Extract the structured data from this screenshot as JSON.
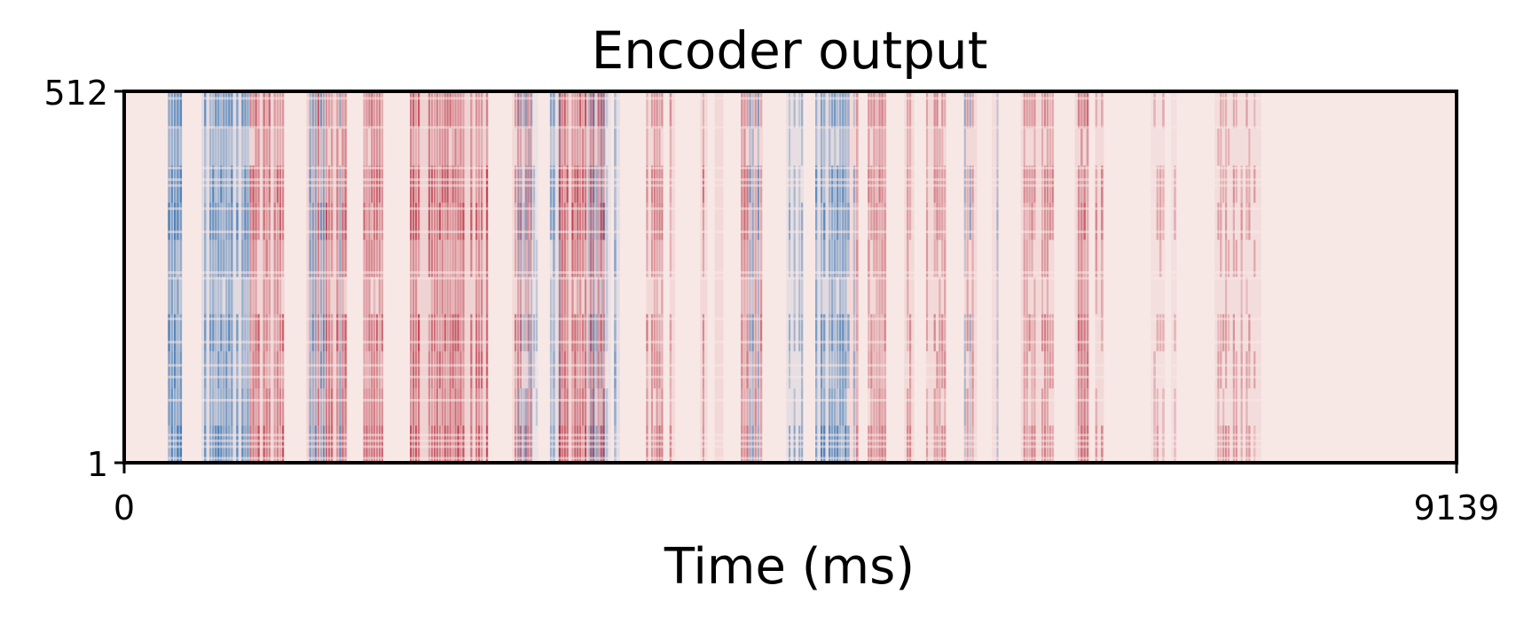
{
  "chart_data": {
    "type": "heatmap",
    "title": "Encoder output",
    "xlabel": "Time (ms)",
    "ylabel": "",
    "xlim": [
      0,
      9139
    ],
    "ylim": [
      1,
      512
    ],
    "x_ticks": [
      "0",
      "9139"
    ],
    "y_ticks": [
      "1",
      "512"
    ],
    "colormap": "diverging blue-white-red",
    "colors": {
      "negative": "#2166ac",
      "neutral": "#f7e8e6",
      "positive": "#b2182b"
    },
    "grid": false,
    "legend": "none",
    "bands": [
      {
        "x_start": 300,
        "x_end": 400,
        "sign": "negative",
        "intensity": 0.95
      },
      {
        "x_start": 530,
        "x_end": 860,
        "sign": "negative",
        "intensity": 0.85
      },
      {
        "x_start": 860,
        "x_end": 1100,
        "sign": "positive",
        "intensity": 0.75
      },
      {
        "x_start": 1250,
        "x_end": 1530,
        "sign": "mixed",
        "intensity": 0.8
      },
      {
        "x_start": 1640,
        "x_end": 1780,
        "sign": "positive",
        "intensity": 0.7
      },
      {
        "x_start": 1960,
        "x_end": 2500,
        "sign": "positive",
        "intensity": 0.85
      },
      {
        "x_start": 2660,
        "x_end": 2800,
        "sign": "positive",
        "intensity": 0.6
      },
      {
        "x_start": 2700,
        "x_end": 2840,
        "sign": "negative",
        "intensity": 0.4
      },
      {
        "x_start": 2920,
        "x_end": 3000,
        "sign": "negative",
        "intensity": 0.65
      },
      {
        "x_start": 2980,
        "x_end": 3300,
        "sign": "positive",
        "intensity": 0.85
      },
      {
        "x_start": 3180,
        "x_end": 3340,
        "sign": "negative",
        "intensity": 0.45
      },
      {
        "x_start": 3360,
        "x_end": 3400,
        "sign": "negative",
        "intensity": 0.75
      },
      {
        "x_start": 3580,
        "x_end": 3700,
        "sign": "positive",
        "intensity": 0.6
      },
      {
        "x_start": 3740,
        "x_end": 3780,
        "sign": "positive",
        "intensity": 0.55
      },
      {
        "x_start": 3950,
        "x_end": 4000,
        "sign": "positive",
        "intensity": 0.6
      },
      {
        "x_start": 4050,
        "x_end": 4110,
        "sign": "mixed",
        "intensity": 0.6
      },
      {
        "x_start": 4230,
        "x_end": 4380,
        "sign": "mixed",
        "intensity": 0.7
      },
      {
        "x_start": 4540,
        "x_end": 4660,
        "sign": "negative",
        "intensity": 0.55
      },
      {
        "x_start": 4740,
        "x_end": 4960,
        "sign": "negative",
        "intensity": 0.8
      },
      {
        "x_start": 4960,
        "x_end": 5040,
        "sign": "mixed",
        "intensity": 0.6
      },
      {
        "x_start": 5100,
        "x_end": 5230,
        "sign": "positive",
        "intensity": 0.6
      },
      {
        "x_start": 5350,
        "x_end": 5420,
        "sign": "positive",
        "intensity": 0.55
      },
      {
        "x_start": 5500,
        "x_end": 5640,
        "sign": "positive",
        "intensity": 0.55
      },
      {
        "x_start": 5760,
        "x_end": 5850,
        "sign": "mixed",
        "intensity": 0.55
      },
      {
        "x_start": 5950,
        "x_end": 6000,
        "sign": "mixed",
        "intensity": 0.45
      },
      {
        "x_start": 6150,
        "x_end": 6380,
        "sign": "positive",
        "intensity": 0.55
      },
      {
        "x_start": 6520,
        "x_end": 6620,
        "sign": "positive",
        "intensity": 0.7
      },
      {
        "x_start": 6660,
        "x_end": 6720,
        "sign": "positive",
        "intensity": 0.55
      },
      {
        "x_start": 7040,
        "x_end": 7140,
        "sign": "positive",
        "intensity": 0.35
      },
      {
        "x_start": 7180,
        "x_end": 7220,
        "sign": "positive",
        "intensity": 0.3
      },
      {
        "x_start": 7480,
        "x_end": 7800,
        "sign": "positive",
        "intensity": 0.45
      }
    ]
  }
}
